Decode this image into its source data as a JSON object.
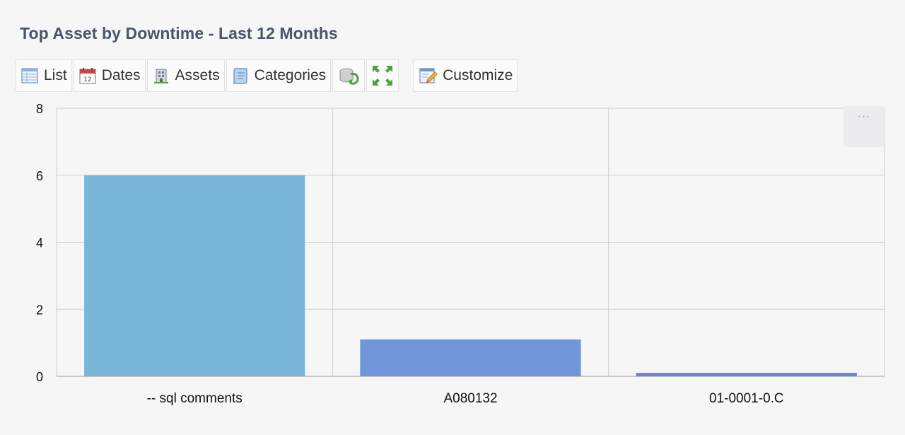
{
  "title": "Top Asset by Downtime - Last 12 Months",
  "toolbar": {
    "list_label": "List",
    "dates_label": "Dates",
    "assets_label": "Assets",
    "categories_label": "Categories",
    "customize_label": "Customize",
    "icons": [
      "list-icon",
      "calendar-icon",
      "building-icon",
      "scroll-icon",
      "refresh-icon",
      "expand-icon",
      "customize-icon"
    ]
  },
  "chart_menu": {
    "label": "···"
  },
  "chart_data": {
    "type": "bar",
    "categories": [
      "-- sql comments",
      "A080132",
      "01-0001-0.C"
    ],
    "values": [
      6,
      1.1,
      0.1
    ],
    "colors": [
      "#7ab6d9",
      "#7096da",
      "#6b80d6"
    ],
    "ylim": [
      0,
      8
    ],
    "yticks": [
      0,
      2,
      4,
      6,
      8
    ],
    "grid": true,
    "title": "",
    "xlabel": "",
    "ylabel": ""
  }
}
